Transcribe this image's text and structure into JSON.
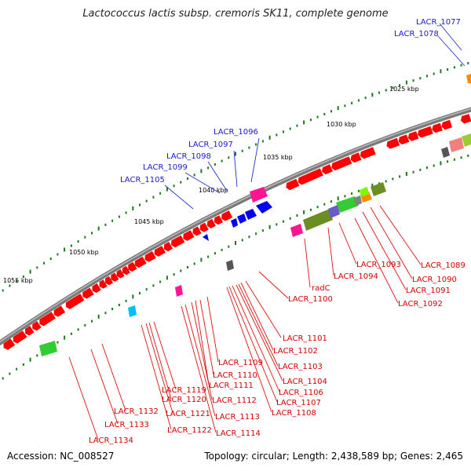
{
  "title": "Lactococcus lactis subsp. cremoris SK11, complete genome",
  "footer": {
    "accession": "Accession: NC_008527",
    "summary": "Topology: circular; Length: 2,438,589 bp; Genes: 2,465"
  },
  "kbp_labels": [
    "1025 kbp",
    "1030 kbp",
    "1035 kbp",
    "1040 kbp",
    "1045 kbp",
    "1050 kbp",
    "1055 kbp"
  ],
  "blue_labels": [
    "LACR_1077",
    "LACR_1078",
    "LACR_1096",
    "LACR_1097",
    "LACR_1098",
    "LACR_1099",
    "LACR_1105"
  ],
  "red_labels": [
    "LACR_1089",
    "LACR_1090",
    "LACR_1091",
    "LACR_1092",
    "LACR_1093",
    "LACR_1094",
    "radC",
    "LACR_1100",
    "LACR_1101",
    "LACR_1102",
    "LACR_1103",
    "LACR_1104",
    "LACR_1106",
    "LACR_1107",
    "LACR_1108",
    "LACR_1109",
    "LACR_1110",
    "LACR_1111",
    "LACR_1112",
    "LACR_1113",
    "LACR_1114",
    "LACR_1119",
    "LACR_1120",
    "LACR_1121",
    "LACR_1122",
    "LACR_1132",
    "LACR_1133",
    "LACR_1134"
  ],
  "colors": {
    "backbone": "#888888",
    "forward_gene": "#ff0000",
    "reverse_gene": "#0000ee",
    "tick": "#1a7a1a",
    "label_forward": "#1a1acc",
    "label_reverse": "#d40000",
    "callout_forward": "#2233cc",
    "callout_reverse": "#dd1111"
  }
}
